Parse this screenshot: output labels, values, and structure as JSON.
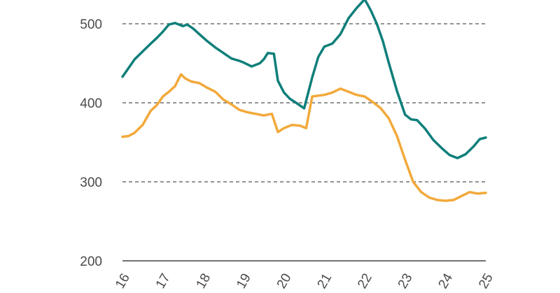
{
  "chart_data": {
    "type": "line",
    "title": "",
    "xlabel": "",
    "ylabel": "",
    "ylim": [
      200,
      540
    ],
    "xlim": [
      2016,
      2025
    ],
    "yticks": [
      "200",
      "300",
      "400",
      "500"
    ],
    "xticks": [
      "16",
      "17",
      "18",
      "19",
      "20",
      "21",
      "22",
      "23",
      "24",
      "25"
    ],
    "grid": "horizontal dashed",
    "series": [
      {
        "color": "#0f7f7a",
        "x": [
          2016.0,
          2016.15,
          2016.3,
          2016.5,
          2016.7,
          2016.85,
          2017.0,
          2017.15,
          2017.3,
          2017.5,
          2017.6,
          2017.75,
          2017.9,
          2018.1,
          2018.3,
          2018.5,
          2018.7,
          2018.9,
          2019.0,
          2019.2,
          2019.4,
          2019.5,
          2019.6,
          2019.75,
          2019.85,
          2020.0,
          2020.15,
          2020.3,
          2020.5,
          2020.7,
          2020.85,
          2021.0,
          2021.2,
          2021.4,
          2021.6,
          2021.8,
          2022.0,
          2022.15,
          2022.3,
          2022.45,
          2022.6,
          2022.8,
          2023.0,
          2023.15,
          2023.3,
          2023.5,
          2023.7,
          2023.9,
          2024.1,
          2024.3,
          2024.5,
          2024.7,
          2024.85,
          2025.0
        ],
        "y": [
          433,
          444,
          455,
          465,
          475,
          482,
          490,
          499,
          501,
          497,
          499,
          494,
          487,
          478,
          470,
          463,
          456,
          453,
          451,
          446,
          450,
          455,
          463,
          462,
          428,
          413,
          405,
          400,
          393,
          432,
          458,
          471,
          475,
          487,
          507,
          520,
          531,
          517,
          500,
          478,
          450,
          415,
          385,
          379,
          378,
          367,
          353,
          343,
          334,
          330,
          335,
          345,
          354,
          356
        ]
      },
      {
        "color": "#f2a93b",
        "x": [
          2016.0,
          2016.15,
          2016.3,
          2016.5,
          2016.7,
          2016.85,
          2017.0,
          2017.15,
          2017.3,
          2017.45,
          2017.55,
          2017.7,
          2017.9,
          2018.1,
          2018.3,
          2018.5,
          2018.7,
          2018.9,
          2019.1,
          2019.3,
          2019.5,
          2019.7,
          2019.85,
          2020.0,
          2020.2,
          2020.4,
          2020.55,
          2020.7,
          2020.85,
          2021.0,
          2021.2,
          2021.4,
          2021.6,
          2021.8,
          2022.0,
          2022.2,
          2022.4,
          2022.6,
          2022.8,
          2023.0,
          2023.2,
          2023.4,
          2023.6,
          2023.8,
          2024.0,
          2024.2,
          2024.4,
          2024.6,
          2024.8,
          2025.0
        ],
        "y": [
          357,
          358,
          362,
          372,
          390,
          397,
          408,
          414,
          421,
          436,
          431,
          427,
          425,
          419,
          414,
          404,
          398,
          391,
          388,
          386,
          384,
          386,
          363,
          368,
          372,
          371,
          368,
          408,
          409,
          410,
          413,
          418,
          414,
          410,
          408,
          401,
          393,
          380,
          358,
          328,
          300,
          287,
          280,
          277,
          276,
          277,
          282,
          287,
          285,
          286
        ]
      }
    ]
  }
}
